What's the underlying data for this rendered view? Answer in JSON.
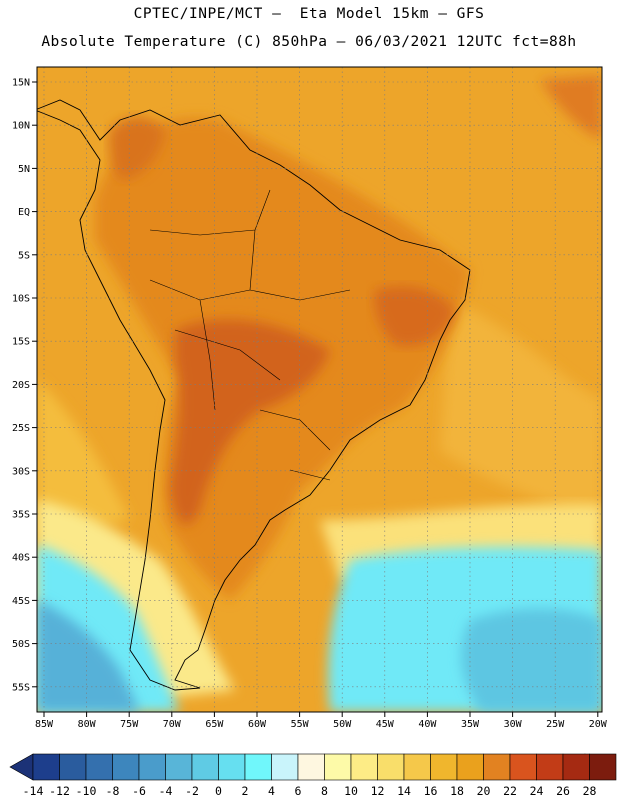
{
  "header": {
    "line1": "CPTEC/INPE/MCT –  Eta Model 15km – GFS",
    "line2": "Absolute Temperature (C) 850hPa – 06/03/2021 12UTC fct=88h"
  },
  "map": {
    "lat_labels": [
      "15N",
      "10N",
      "5N",
      "EQ",
      "5S",
      "10S",
      "15S",
      "20S",
      "25S",
      "30S",
      "35S",
      "40S",
      "45S",
      "50S",
      "55S"
    ],
    "lon_labels": [
      "85W",
      "80W",
      "75W",
      "70W",
      "65W",
      "60W",
      "55W",
      "50W",
      "45W",
      "40W",
      "35W",
      "30W",
      "25W",
      "20W"
    ],
    "fields": [
      {
        "label": "cold-pool",
        "color": "#6fe9f7"
      },
      {
        "label": "deep-cold",
        "color": "#57b1d8"
      },
      {
        "label": "warm-core",
        "color": "#d2641c"
      }
    ]
  },
  "colorbar": {
    "labels": [
      "-14",
      "-12",
      "-10",
      "-8",
      "-6",
      "-4",
      "-2",
      "0",
      "2",
      "4",
      "6",
      "8",
      "10",
      "12",
      "14",
      "16",
      "18",
      "20",
      "22",
      "24",
      "26",
      "28"
    ],
    "colors": [
      "#1d3e8c",
      "#2a5c9e",
      "#3470ae",
      "#3d86bd",
      "#4a9ccb",
      "#58b5d8",
      "#5fcbe4",
      "#66dff0",
      "#70f7fb",
      "#c9f4fb",
      "#fef7e0",
      "#fdfaa8",
      "#fdec86",
      "#f9de6a",
      "#f5c84a",
      "#f0b62d",
      "#eaa11d",
      "#e28221",
      "#d9541e",
      "#c23c17",
      "#a52a12",
      "#7c1c0e"
    ],
    "left_arrow_color": "#1c3277",
    "right_arrow_color": "#6e0b1a"
  }
}
